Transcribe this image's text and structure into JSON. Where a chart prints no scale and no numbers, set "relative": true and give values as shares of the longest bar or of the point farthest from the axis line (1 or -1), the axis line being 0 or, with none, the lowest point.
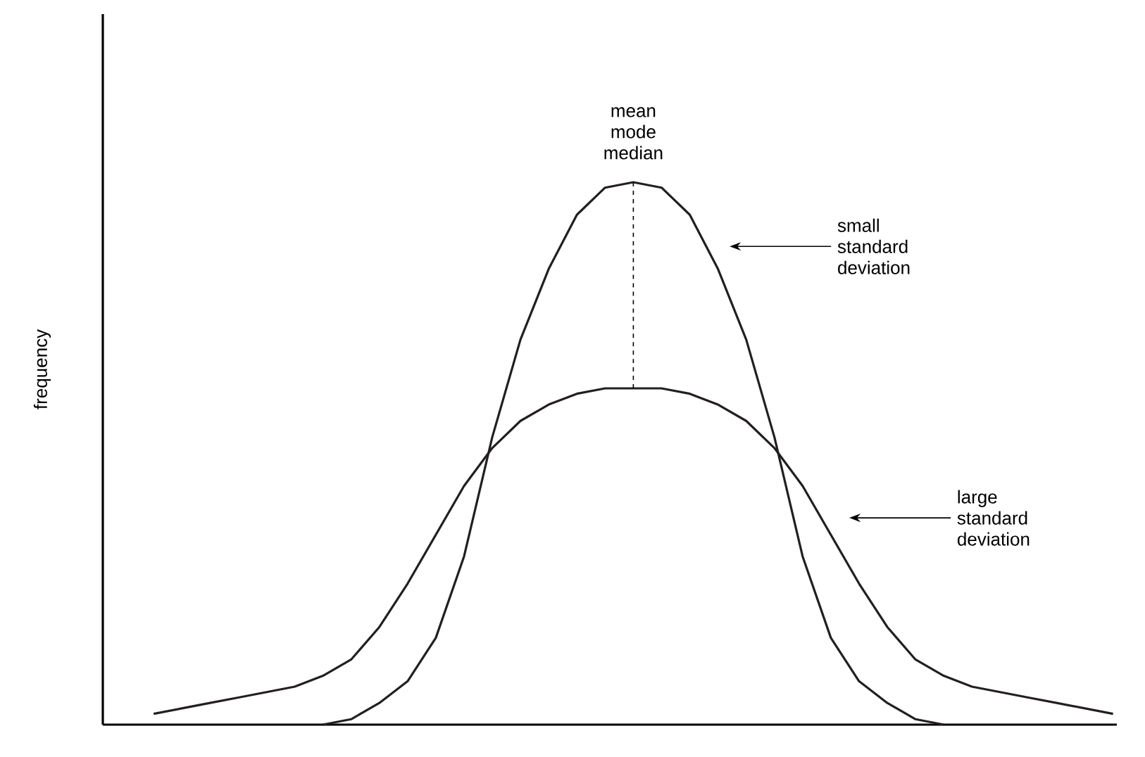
{
  "chart_data": {
    "type": "line",
    "relative": true,
    "ylabel": "frequency",
    "tick_labels": false,
    "marker": "none",
    "line_style": "solid",
    "categories": [
      null,
      null,
      null,
      null,
      null,
      null,
      null,
      null,
      null,
      null,
      null,
      null,
      null,
      null,
      null,
      null,
      null,
      null,
      null,
      null,
      null,
      null,
      null,
      null,
      null,
      null,
      null,
      null,
      null,
      null,
      null,
      null,
      null,
      null,
      null
    ],
    "series": [
      {
        "color": "#231f20",
        "values": [
          null,
          null,
          null,
          null,
          null,
          null,
          0.0,
          0.01,
          0.04,
          0.08,
          0.16,
          0.31,
          0.53,
          0.71,
          0.84,
          0.94,
          0.99,
          1.0,
          0.99,
          0.94,
          0.84,
          0.71,
          0.53,
          0.31,
          0.16,
          0.08,
          0.04,
          0.01,
          0.0,
          null,
          null,
          null,
          null,
          null,
          null
        ]
      },
      {
        "color": "#231f20",
        "values": [
          0.02,
          0.03,
          0.04,
          0.05,
          0.06,
          0.07,
          0.09,
          0.12,
          0.18,
          0.26,
          0.35,
          0.44,
          0.51,
          0.56,
          0.59,
          0.61,
          0.62,
          0.62,
          0.62,
          0.61,
          0.59,
          0.56,
          0.51,
          0.44,
          0.35,
          0.26,
          0.18,
          0.12,
          0.09,
          0.07,
          0.06,
          0.05,
          0.04,
          0.03,
          0.02
        ]
      }
    ],
    "annotations": [
      "mean mode median",
      "small standard deviation",
      "large standard deviation"
    ]
  }
}
